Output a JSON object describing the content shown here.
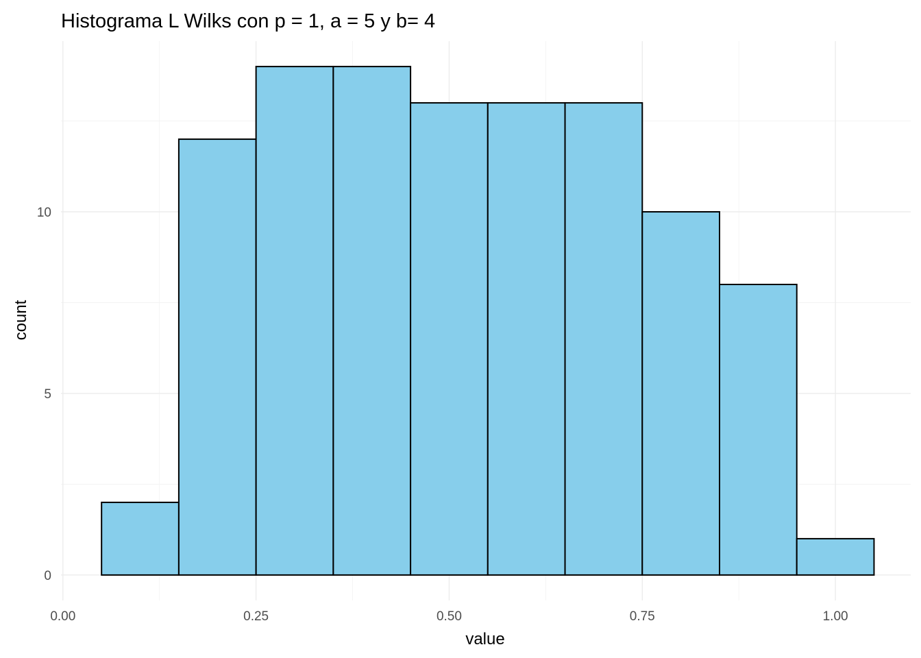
{
  "chart_data": {
    "type": "bar",
    "title": "Histograma L Wilks con p = 1, a = 5 y b= 4",
    "xlabel": "value",
    "ylabel": "count",
    "bin_width": 0.1,
    "bins": [
      {
        "start": 0.05,
        "end": 0.15,
        "count": 2
      },
      {
        "start": 0.15,
        "end": 0.25,
        "count": 12
      },
      {
        "start": 0.25,
        "end": 0.35,
        "count": 14
      },
      {
        "start": 0.35,
        "end": 0.45,
        "count": 14
      },
      {
        "start": 0.45,
        "end": 0.55,
        "count": 13
      },
      {
        "start": 0.55,
        "end": 0.65,
        "count": 13
      },
      {
        "start": 0.65,
        "end": 0.75,
        "count": 13
      },
      {
        "start": 0.75,
        "end": 0.85,
        "count": 10
      },
      {
        "start": 0.85,
        "end": 0.95,
        "count": 8
      },
      {
        "start": 0.95,
        "end": 1.05,
        "count": 1
      }
    ],
    "xlim": [
      -0.0025,
      1.0975
    ],
    "ylim": [
      -0.7,
      14.7
    ],
    "x_ticks": [
      {
        "value": 0.0,
        "label": "0.00"
      },
      {
        "value": 0.25,
        "label": "0.25"
      },
      {
        "value": 0.5,
        "label": "0.50"
      },
      {
        "value": 0.75,
        "label": "0.75"
      },
      {
        "value": 1.0,
        "label": "1.00"
      }
    ],
    "y_ticks": [
      {
        "value": 0,
        "label": "0"
      },
      {
        "value": 5,
        "label": "5"
      },
      {
        "value": 10,
        "label": "10"
      }
    ],
    "x_minor_ticks": [
      0.125,
      0.375,
      0.625,
      0.875
    ],
    "y_minor_ticks": [
      2.5,
      7.5,
      12.5
    ],
    "grid": true,
    "legend": "none",
    "colors": {
      "fill": "#87CEEB",
      "outline": "#000000"
    }
  }
}
